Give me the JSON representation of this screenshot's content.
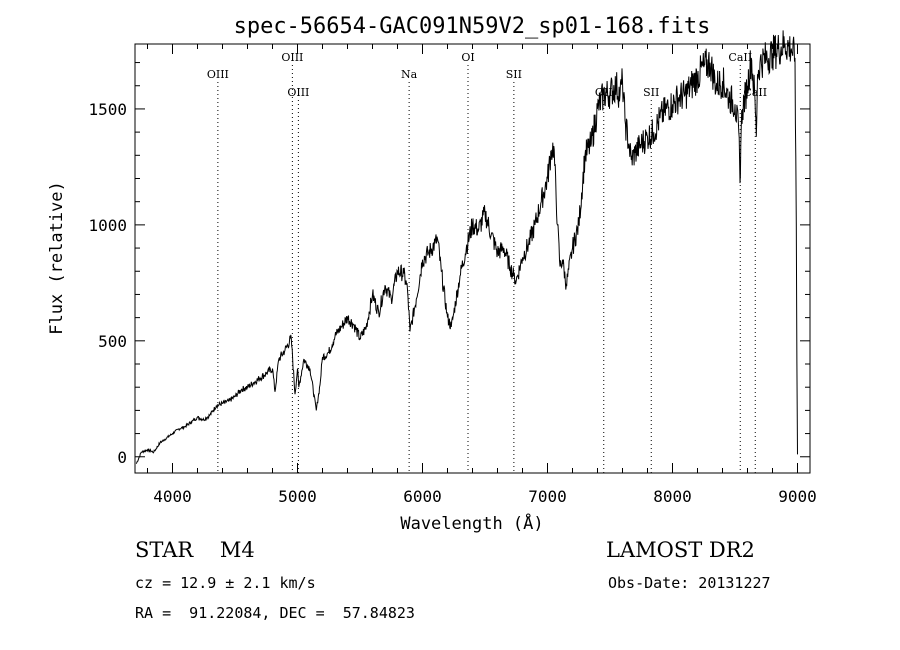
{
  "chart_data": {
    "type": "line",
    "title": "spec-56654-GAC091N59V2_sp01-168.fits",
    "xlabel": "Wavelength (Å)",
    "ylabel": "Flux (relative)",
    "xlim": [
      3700,
      9100
    ],
    "ylim": [
      -70,
      1780
    ],
    "x_ticks": [
      4000,
      5000,
      6000,
      7000,
      8000,
      9000
    ],
    "y_ticks": [
      0,
      500,
      1000,
      1500
    ],
    "x_tick_labels": [
      "4000",
      "5000",
      "6000",
      "7000",
      "8000",
      "9000"
    ],
    "y_tick_labels": [
      "0",
      "500",
      "1000",
      "1500"
    ],
    "grid": false,
    "series": [
      {
        "x": [
          3710,
          3750,
          3800,
          3850,
          3900,
          3950,
          4000,
          4050,
          4100,
          4150,
          4200,
          4250,
          4300,
          4350,
          4400,
          4450,
          4500,
          4550,
          4600,
          4650,
          4700,
          4750,
          4800,
          4820,
          4850,
          4900,
          4950,
          4980,
          5000,
          5010,
          5050,
          5100,
          5150,
          5180,
          5200,
          5250,
          5300,
          5350,
          5400,
          5450,
          5500,
          5550,
          5600,
          5650,
          5700,
          5750,
          5800,
          5850,
          5880,
          5900,
          5950,
          6000,
          6050,
          6100,
          6120,
          6150,
          6200,
          6230,
          6250,
          6300,
          6350,
          6400,
          6450,
          6500,
          6550,
          6600,
          6650,
          6700,
          6730,
          6750,
          6800,
          6850,
          6900,
          6950,
          7000,
          7030,
          7050,
          7080,
          7100,
          7120,
          7150,
          7200,
          7250,
          7300,
          7350,
          7400,
          7450,
          7500,
          7550,
          7580,
          7600,
          7620,
          7650,
          7670,
          7700,
          7750,
          7800,
          7850,
          7900,
          7950,
          8000,
          8050,
          8100,
          8150,
          8200,
          8250,
          8300,
          8350,
          8400,
          8450,
          8500,
          8530,
          8540,
          8550,
          8560,
          8600,
          8630,
          8660,
          8670,
          8680,
          8700,
          8750,
          8800,
          8850,
          8900,
          8950,
          8980,
          8990,
          8995,
          9000
        ],
        "y": [
          -30,
          20,
          30,
          20,
          60,
          80,
          100,
          120,
          130,
          150,
          170,
          160,
          180,
          220,
          230,
          240,
          260,
          290,
          300,
          320,
          340,
          360,
          380,
          280,
          420,
          460,
          510,
          270,
          380,
          300,
          420,
          380,
          200,
          310,
          430,
          450,
          520,
          560,
          600,
          570,
          510,
          560,
          700,
          620,
          740,
          680,
          800,
          790,
          720,
          540,
          680,
          850,
          880,
          920,
          940,
          800,
          600,
          560,
          620,
          780,
          900,
          1000,
          980,
          1050,
          960,
          880,
          900,
          820,
          780,
          760,
          860,
          920,
          1000,
          1100,
          1200,
          1320,
          1340,
          1000,
          820,
          850,
          740,
          900,
          1000,
          1300,
          1350,
          1500,
          1560,
          1570,
          1600,
          1560,
          1620,
          1450,
          1350,
          1280,
          1310,
          1350,
          1380,
          1400,
          1460,
          1500,
          1520,
          1550,
          1560,
          1600,
          1640,
          1680,
          1700,
          1600,
          1620,
          1550,
          1520,
          1400,
          1180,
          1430,
          1500,
          1600,
          1720,
          1540,
          1380,
          1650,
          1700,
          1720,
          1740,
          1760,
          1780,
          1760,
          1720,
          1000,
          400,
          10
        ]
      }
    ],
    "annotations": [
      {
        "label": "OIII",
        "x": 4363,
        "row": 1
      },
      {
        "label": "OIII",
        "x": 4959,
        "row": 0
      },
      {
        "label": "OIII",
        "x": 5007,
        "row": 2
      },
      {
        "label": "Na",
        "x": 5893,
        "row": 1
      },
      {
        "label": "OI",
        "x": 6364,
        "row": 0
      },
      {
        "label": "SII",
        "x": 6731,
        "row": 1
      },
      {
        "label": "OII",
        "x": 7450,
        "row": 2
      },
      {
        "label": "SII",
        "x": 7830,
        "row": 2
      },
      {
        "label": "CaII",
        "x": 8542,
        "row": 0
      },
      {
        "label": "CaII",
        "x": 8662,
        "row": 2
      }
    ]
  },
  "info": {
    "star_type": "STAR    M4",
    "survey": "LAMOST DR2",
    "cz": "cz = 12.9 ± 2.1 km/s",
    "obs_date": "Obs-Date: 20131227",
    "radec": "RA =  91.22084, DEC =  57.84823"
  }
}
